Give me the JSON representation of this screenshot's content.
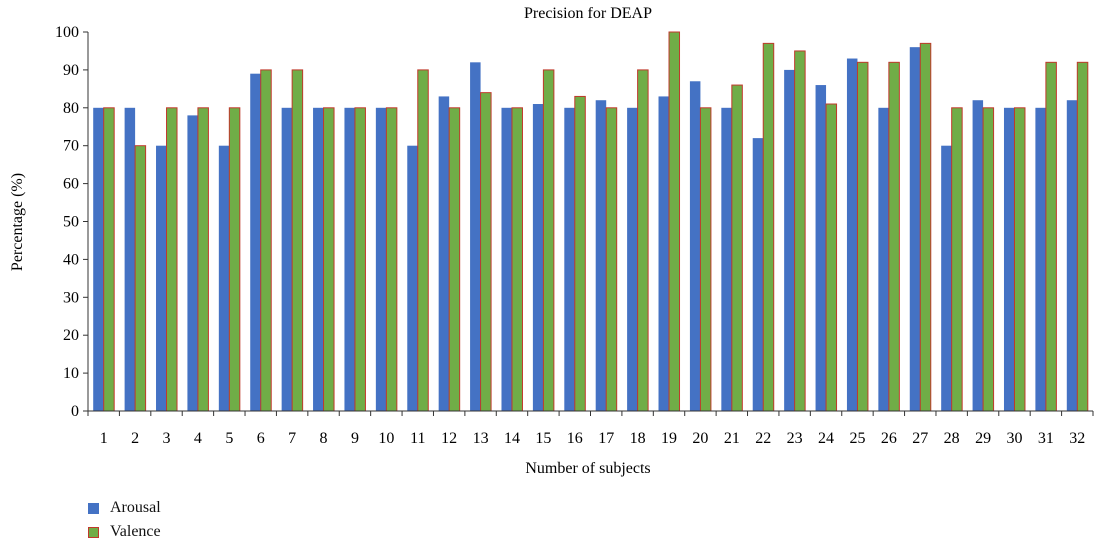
{
  "chart_data": {
    "type": "bar",
    "title": "Precision for DEAP",
    "xlabel": "Number of subjects",
    "ylabel": "Percentage (%)",
    "ylim": [
      0,
      100
    ],
    "yticks": [
      0,
      10,
      20,
      30,
      40,
      50,
      60,
      70,
      80,
      90,
      100
    ],
    "grid": false,
    "legend_position": "bottom-left",
    "categories": [
      "1",
      "2",
      "3",
      "4",
      "5",
      "6",
      "7",
      "8",
      "9",
      "10",
      "11",
      "12",
      "13",
      "14",
      "15",
      "16",
      "17",
      "18",
      "19",
      "20",
      "21",
      "22",
      "23",
      "24",
      "25",
      "26",
      "27",
      "28",
      "29",
      "30",
      "31",
      "32"
    ],
    "series": [
      {
        "name": "Arousal",
        "color": "#4472c4",
        "values": [
          80,
          80,
          70,
          78,
          70,
          89,
          80,
          80,
          80,
          80,
          70,
          83,
          92,
          80,
          81,
          80,
          82,
          80,
          83,
          87,
          80,
          72,
          90,
          86,
          93,
          80,
          96,
          70,
          82,
          80,
          80,
          82
        ]
      },
      {
        "name": "Valence",
        "color": "#70ad47",
        "edge_color": "#c0392b",
        "values": [
          80,
          70,
          80,
          80,
          80,
          90,
          90,
          80,
          80,
          80,
          90,
          80,
          84,
          80,
          90,
          83,
          80,
          90,
          100,
          80,
          86,
          97,
          95,
          81,
          92,
          92,
          97,
          80,
          80,
          80,
          92,
          92
        ]
      }
    ]
  }
}
